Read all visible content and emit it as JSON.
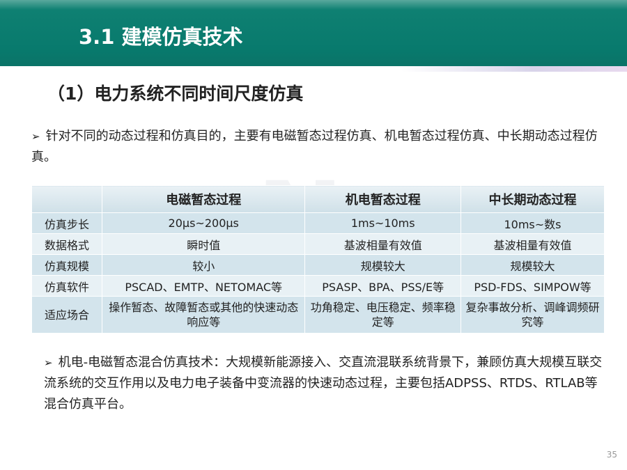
{
  "header": {
    "title": "3.1 建模仿真技术"
  },
  "subtitle": "（1）电力系统不同时间尺度仿真",
  "paragraphs": [
    {
      "bullet": "➢",
      "text": "针对不同的动态过程和仿真目的，主要有电磁暂态过程仿真、机电暂态过程仿真、中长期动态过程仿真。"
    },
    {
      "bullet": "➢",
      "text": "机电-电磁暂态混合仿真技术：大规模新能源接入、交直流混联系统背景下，兼顾仿真大规模互联交流系统的交互作用以及电力电子装备中变流器的快速动态过程，主要包括ADPSS、RTDS、RTLAB等混合仿真平台。"
    }
  ],
  "table": {
    "columns": [
      "",
      "电磁暂态过程",
      "机电暂态过程",
      "中长期动态过程"
    ],
    "rows": [
      [
        "仿真步长",
        "20μs~200μs",
        "1ms~10ms",
        "10ms~数s"
      ],
      [
        "数据格式",
        "瞬时值",
        "基波相量有效值",
        "基波相量有效值"
      ],
      [
        "仿真规模",
        "较小",
        "规模较大",
        "规模较大"
      ],
      [
        "仿真软件",
        "PSCAD、EMTP、NETOMAC等",
        "PSASP、BPA、PSS/E等",
        "PSD-FDS、SIMPOW等"
      ],
      [
        "适应场合",
        "操作暂态、故障暂态或其他的快速动态响应等",
        "功角稳定、电压稳定、频率稳定等",
        "复杂事故分析、调峰调频研究等"
      ]
    ]
  },
  "page_number": "35",
  "colors": {
    "header": "#087a6d",
    "table_row": "#d3e4ec"
  }
}
